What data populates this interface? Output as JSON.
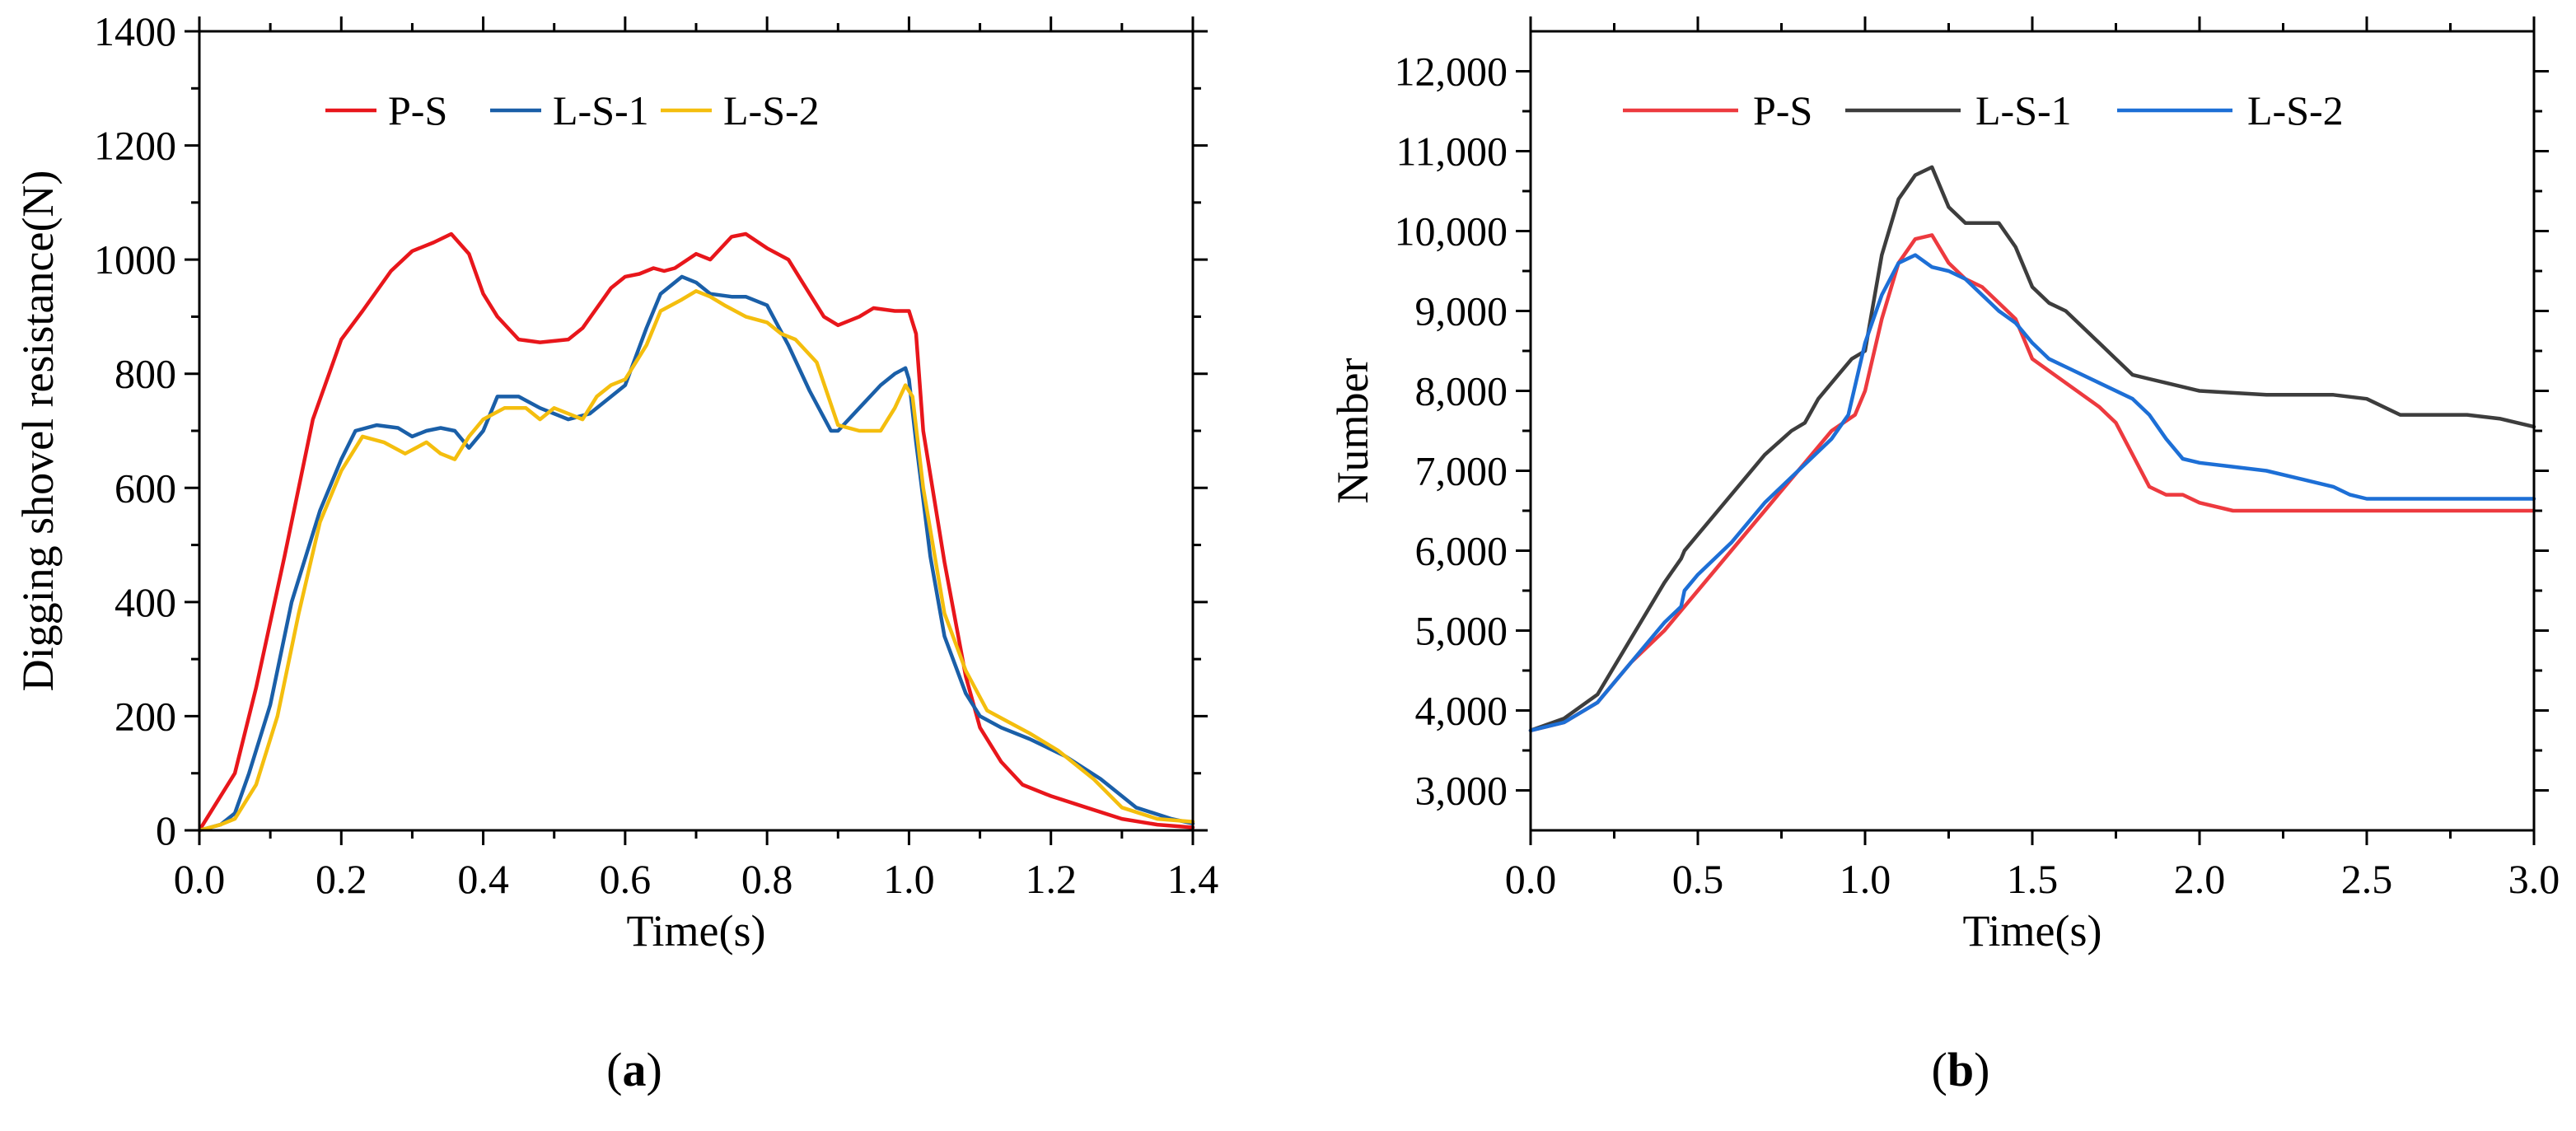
{
  "chart_data": [
    {
      "type": "line",
      "panel_label": "a",
      "title": "",
      "xlabel": "Time(s)",
      "ylabel": "Digging shovel resistance(N)",
      "xlim": [
        0,
        1.4
      ],
      "ylim": [
        0,
        1400
      ],
      "xticks": [
        0,
        0.2,
        0.4,
        0.6,
        0.8,
        1.0,
        1.2,
        1.4
      ],
      "xtick_labels": [
        "0.0",
        "0.2",
        "0.4",
        "0.6",
        "0.8",
        "1.0",
        "1.2",
        "1.4"
      ],
      "yticks": [
        0,
        200,
        400,
        600,
        800,
        1000,
        1200,
        1400
      ],
      "ytick_labels": [
        "0",
        "200",
        "400",
        "600",
        "800",
        "1000",
        "1200",
        "1400"
      ],
      "grid": false,
      "legend_position": "top-center",
      "series": [
        {
          "name": "P-S",
          "color": "#e8161b",
          "x": [
            0,
            0.02,
            0.05,
            0.08,
            0.12,
            0.16,
            0.2,
            0.23,
            0.27,
            0.3,
            0.33,
            0.355,
            0.38,
            0.4,
            0.42,
            0.45,
            0.48,
            0.52,
            0.54,
            0.58,
            0.6,
            0.62,
            0.64,
            0.655,
            0.67,
            0.7,
            0.72,
            0.75,
            0.77,
            0.8,
            0.83,
            0.85,
            0.88,
            0.9,
            0.93,
            0.95,
            0.98,
            1.0,
            1.01,
            1.02,
            1.05,
            1.08,
            1.1,
            1.13,
            1.16,
            1.2,
            1.25,
            1.3,
            1.35,
            1.4
          ],
          "y": [
            0,
            40,
            100,
            250,
            480,
            720,
            860,
            910,
            980,
            1015,
            1030,
            1045,
            1010,
            940,
            900,
            860,
            855,
            860,
            880,
            950,
            970,
            975,
            985,
            980,
            985,
            1010,
            1000,
            1040,
            1045,
            1020,
            1000,
            960,
            900,
            885,
            900,
            915,
            910,
            910,
            870,
            700,
            470,
            270,
            180,
            120,
            80,
            60,
            40,
            20,
            10,
            5
          ]
        },
        {
          "name": "L-S-1",
          "color": "#1a5fa8",
          "x": [
            0,
            0.03,
            0.05,
            0.07,
            0.1,
            0.13,
            0.17,
            0.2,
            0.22,
            0.25,
            0.28,
            0.3,
            0.32,
            0.34,
            0.36,
            0.38,
            0.4,
            0.42,
            0.45,
            0.48,
            0.52,
            0.55,
            0.6,
            0.63,
            0.65,
            0.68,
            0.7,
            0.72,
            0.75,
            0.77,
            0.8,
            0.83,
            0.86,
            0.89,
            0.9,
            0.93,
            0.96,
            0.98,
            0.995,
            1.0,
            1.01,
            1.03,
            1.05,
            1.08,
            1.1,
            1.13,
            1.17,
            1.22,
            1.27,
            1.32,
            1.37,
            1.4
          ],
          "y": [
            0,
            10,
            30,
            100,
            220,
            400,
            560,
            650,
            700,
            710,
            705,
            690,
            700,
            705,
            700,
            670,
            700,
            760,
            760,
            740,
            720,
            730,
            780,
            880,
            940,
            970,
            960,
            940,
            935,
            935,
            920,
            850,
            770,
            700,
            700,
            740,
            780,
            800,
            810,
            790,
            680,
            480,
            340,
            240,
            200,
            180,
            160,
            130,
            90,
            40,
            20,
            12
          ]
        },
        {
          "name": "L-S-2",
          "color": "#f4be0e",
          "x": [
            0,
            0.03,
            0.05,
            0.08,
            0.11,
            0.14,
            0.17,
            0.2,
            0.23,
            0.26,
            0.29,
            0.32,
            0.34,
            0.36,
            0.38,
            0.4,
            0.43,
            0.46,
            0.48,
            0.5,
            0.52,
            0.54,
            0.56,
            0.58,
            0.6,
            0.63,
            0.65,
            0.68,
            0.7,
            0.72,
            0.74,
            0.77,
            0.8,
            0.82,
            0.84,
            0.87,
            0.9,
            0.93,
            0.96,
            0.98,
            0.995,
            1.005,
            1.02,
            1.05,
            1.08,
            1.11,
            1.14,
            1.17,
            1.21,
            1.26,
            1.3,
            1.35,
            1.4
          ],
          "y": [
            0,
            10,
            20,
            80,
            200,
            380,
            540,
            630,
            690,
            680,
            660,
            680,
            660,
            650,
            690,
            720,
            740,
            740,
            720,
            740,
            730,
            720,
            760,
            780,
            790,
            850,
            910,
            930,
            945,
            935,
            920,
            900,
            890,
            870,
            860,
            820,
            710,
            700,
            700,
            740,
            780,
            760,
            600,
            380,
            280,
            210,
            190,
            170,
            140,
            90,
            40,
            20,
            15
          ]
        }
      ]
    },
    {
      "type": "line",
      "panel_label": "b",
      "title": "",
      "xlabel": "Time(s)",
      "ylabel": "Number",
      "xlim": [
        0,
        3.0
      ],
      "ylim": [
        2500,
        12500
      ],
      "xticks": [
        0,
        0.5,
        1.0,
        1.5,
        2.0,
        2.5,
        3.0
      ],
      "xtick_labels": [
        "0.0",
        "0.5",
        "1.0",
        "1.5",
        "2.0",
        "2.5",
        "3.0"
      ],
      "yticks": [
        3000,
        4000,
        5000,
        6000,
        7000,
        8000,
        9000,
        10000,
        11000,
        12000
      ],
      "ytick_labels": [
        "3,000",
        "4,000",
        "5,000",
        "6,000",
        "7,000",
        "8,000",
        "9,000",
        "10,000",
        "11,000",
        "12,000"
      ],
      "grid": false,
      "legend_position": "top-center",
      "series": [
        {
          "name": "P-S",
          "color": "#ed3a3f",
          "x": [
            0,
            0.1,
            0.2,
            0.3,
            0.4,
            0.5,
            0.6,
            0.7,
            0.8,
            0.9,
            0.97,
            1.0,
            1.05,
            1.1,
            1.15,
            1.2,
            1.25,
            1.3,
            1.35,
            1.4,
            1.45,
            1.5,
            1.6,
            1.7,
            1.75,
            1.8,
            1.85,
            1.9,
            1.95,
            2.0,
            2.1,
            2.3,
            2.5,
            2.7,
            2.9,
            3.0
          ],
          "y": [
            3750,
            3850,
            4100,
            4600,
            5000,
            5500,
            6000,
            6500,
            7000,
            7500,
            7700,
            8000,
            8900,
            9600,
            9900,
            9950,
            9600,
            9400,
            9300,
            9100,
            8900,
            8400,
            8100,
            7800,
            7600,
            7200,
            6800,
            6700,
            6700,
            6600,
            6500,
            6500,
            6500,
            6500,
            6500,
            6500
          ]
        },
        {
          "name": "L-S-1",
          "color": "#3d3d3d",
          "x": [
            0,
            0.1,
            0.2,
            0.3,
            0.4,
            0.45,
            0.46,
            0.5,
            0.6,
            0.7,
            0.78,
            0.82,
            0.86,
            0.92,
            0.96,
            1.0,
            1.05,
            1.1,
            1.15,
            1.2,
            1.25,
            1.3,
            1.35,
            1.4,
            1.45,
            1.5,
            1.55,
            1.6,
            1.7,
            1.75,
            1.8,
            1.85,
            1.9,
            2.0,
            2.2,
            2.4,
            2.5,
            2.6,
            2.8,
            2.9,
            3.0
          ],
          "y": [
            3750,
            3900,
            4200,
            4900,
            5600,
            5900,
            6000,
            6200,
            6700,
            7200,
            7500,
            7600,
            7900,
            8200,
            8400,
            8500,
            9700,
            10400,
            10700,
            10800,
            10300,
            10100,
            10100,
            10100,
            9800,
            9300,
            9100,
            9000,
            8600,
            8400,
            8200,
            8150,
            8100,
            8000,
            7950,
            7950,
            7900,
            7700,
            7700,
            7650,
            7550
          ]
        },
        {
          "name": "L-S-2",
          "color": "#1d6fd6",
          "x": [
            0,
            0.1,
            0.2,
            0.3,
            0.4,
            0.45,
            0.46,
            0.5,
            0.6,
            0.7,
            0.8,
            0.9,
            0.95,
            1.0,
            1.05,
            1.1,
            1.15,
            1.2,
            1.25,
            1.3,
            1.35,
            1.4,
            1.45,
            1.5,
            1.55,
            1.6,
            1.7,
            1.8,
            1.85,
            1.9,
            1.95,
            2.0,
            2.1,
            2.2,
            2.3,
            2.4,
            2.45,
            2.5,
            2.7,
            2.9,
            3.0
          ],
          "y": [
            3750,
            3850,
            4100,
            4600,
            5100,
            5300,
            5500,
            5700,
            6100,
            6600,
            7000,
            7400,
            7700,
            8600,
            9200,
            9600,
            9700,
            9550,
            9500,
            9400,
            9200,
            9000,
            8850,
            8600,
            8400,
            8300,
            8100,
            7900,
            7700,
            7400,
            7150,
            7100,
            7050,
            7000,
            6900,
            6800,
            6700,
            6650,
            6650,
            6650,
            6650
          ]
        }
      ]
    }
  ]
}
